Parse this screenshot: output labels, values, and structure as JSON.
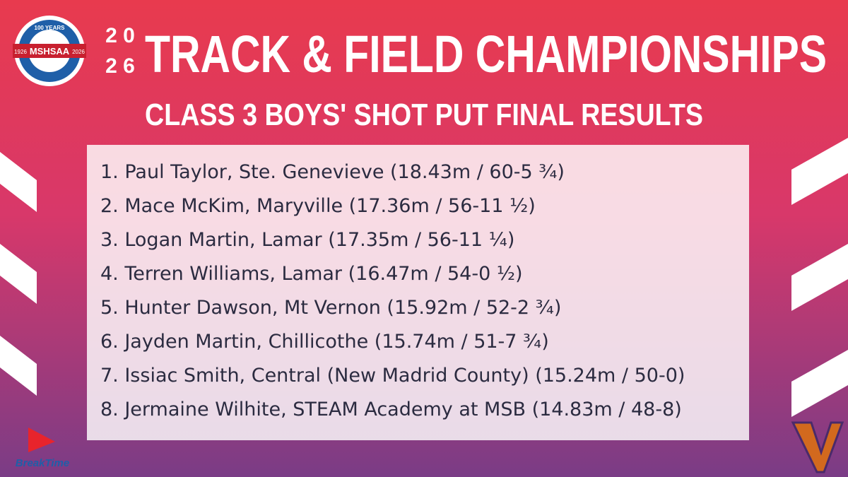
{
  "header": {
    "year": [
      "2 0",
      "2 6"
    ],
    "title": "TRACK & FIELD CHAMPIONSHIPS",
    "subtitle": "CLASS 3 BOYS' SHOT PUT FINAL RESULTS"
  },
  "logo": {
    "badge": "100 YEARS",
    "name": "MSHSAA",
    "start_year": "1926",
    "end_year": "2026"
  },
  "results": [
    "1. Paul Taylor, Ste. Genevieve (18.43m / 60-5 ¾)",
    "2. Mace McKim, Maryville (17.36m / 56-11 ½)",
    "3. Logan Martin, Lamar (17.35m / 56-11 ¼)",
    "4. Terren Williams, Lamar (16.47m / 54-0 ½)",
    "5. Hunter Dawson, Mt Vernon (15.92m / 52-2 ¾)",
    "6. Jayden Martin, Chillicothe (15.74m / 51-7 ¾)",
    "7. Issiac Smith, Central (New Madrid County) (15.24m / 50-0)",
    "8. Jermaine Wilhite, STEAM Academy at MSB (14.83m / 48-8)"
  ],
  "sponsor": "BreakTime"
}
